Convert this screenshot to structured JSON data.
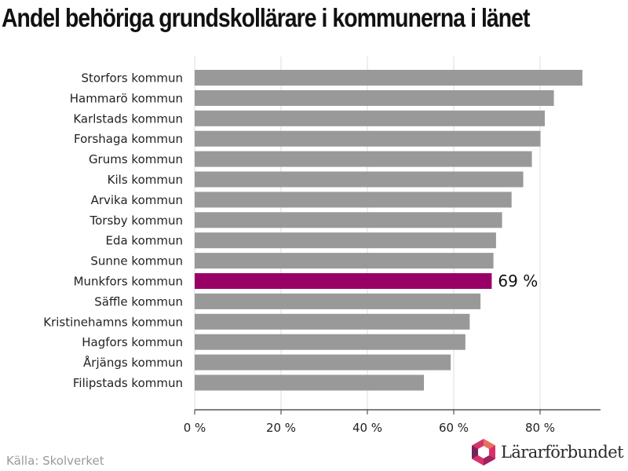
{
  "title": "Andel behöriga grundskollärare i kommunerna i länet",
  "source": "Källa: Skolverket",
  "logo": {
    "text": "Lärarförbundet",
    "icon": "lararforbundet-logo-icon"
  },
  "colors": {
    "bar": "#999999",
    "highlight": "#990066",
    "grid": "#dddddd",
    "axis": "#333333"
  },
  "chart_data": {
    "type": "bar",
    "orientation": "horizontal",
    "categories": [
      "Storfors kommun",
      "Hammarö kommun",
      "Karlstads kommun",
      "Forshaga kommun",
      "Grums kommun",
      "Kils kommun",
      "Arvika kommun",
      "Torsby kommun",
      "Eda kommun",
      "Sunne kommun",
      "Munkfors kommun",
      "Säffle kommun",
      "Kristinehamns kommun",
      "Hagfors kommun",
      "Årjängs kommun",
      "Filipstads kommun"
    ],
    "values": [
      89.8,
      83.2,
      81.1,
      80.1,
      78.1,
      76.1,
      73.4,
      71.2,
      69.8,
      69.2,
      68.8,
      66.2,
      63.7,
      62.7,
      59.3,
      53.1
    ],
    "highlight_index": 10,
    "highlight_label": "69 %",
    "xlim": [
      0,
      94
    ],
    "xticks": [
      0,
      20,
      40,
      60,
      80
    ],
    "xtick_labels": [
      "0 %",
      "20 %",
      "40 %",
      "60 %",
      "80 %"
    ],
    "grid": true
  }
}
